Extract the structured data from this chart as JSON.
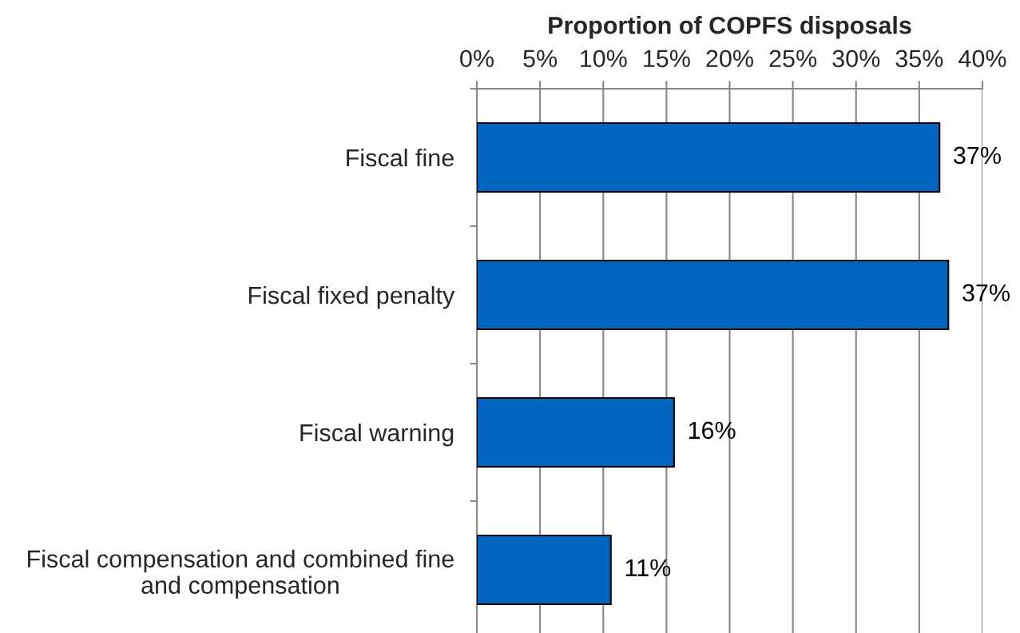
{
  "chart_data": {
    "type": "bar",
    "orientation": "horizontal",
    "xlabel": "Proportion of COPFS disposals",
    "categories": [
      "Fiscal fine",
      "Fiscal fixed penalty",
      "Fiscal warning",
      "Fiscal compensation and combined fine\nand compensation"
    ],
    "values": [
      36.6,
      37.3,
      15.6,
      10.6
    ],
    "value_labels": [
      "37%",
      "37%",
      "16%",
      "11%"
    ],
    "color": "#0066bf",
    "xlim": [
      0,
      40
    ],
    "xticks": [
      {
        "value": 0,
        "label": "0%"
      },
      {
        "value": 5,
        "label": "5%"
      },
      {
        "value": 10,
        "label": "10%"
      },
      {
        "value": 15,
        "label": "15%"
      },
      {
        "value": 20,
        "label": "20%"
      },
      {
        "value": 25,
        "label": "25%"
      },
      {
        "value": 30,
        "label": "30%"
      },
      {
        "value": 35,
        "label": "35%"
      },
      {
        "value": 40,
        "label": "40%"
      }
    ],
    "grid": "x"
  }
}
